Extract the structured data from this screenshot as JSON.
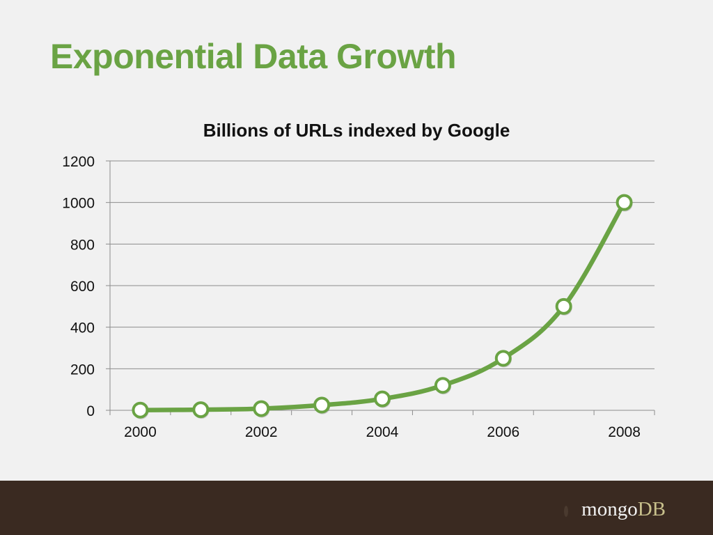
{
  "slide": {
    "title": "Exponential Data Growth"
  },
  "chart_data": {
    "type": "line",
    "title": "Billions of URLs indexed by Google",
    "xlabel": "",
    "ylabel": "",
    "x": [
      2000,
      2001,
      2002,
      2003,
      2004,
      2005,
      2006,
      2007,
      2008
    ],
    "x_tick_labels": [
      "2000",
      "2002",
      "2004",
      "2006",
      "2008"
    ],
    "y_tick_labels": [
      "0",
      "200",
      "400",
      "600",
      "800",
      "1000",
      "1200"
    ],
    "series": [
      {
        "values": [
          1,
          3,
          8,
          25,
          55,
          120,
          250,
          500,
          1000
        ]
      }
    ],
    "ylim": [
      0,
      1200
    ],
    "grid": true,
    "legend": "none",
    "line_color": "#6aa344",
    "marker_fill": "#ffffff"
  },
  "footer": {
    "logo_part1": "mongo",
    "logo_part2": "DB",
    "background_color": "#3a2a21"
  }
}
